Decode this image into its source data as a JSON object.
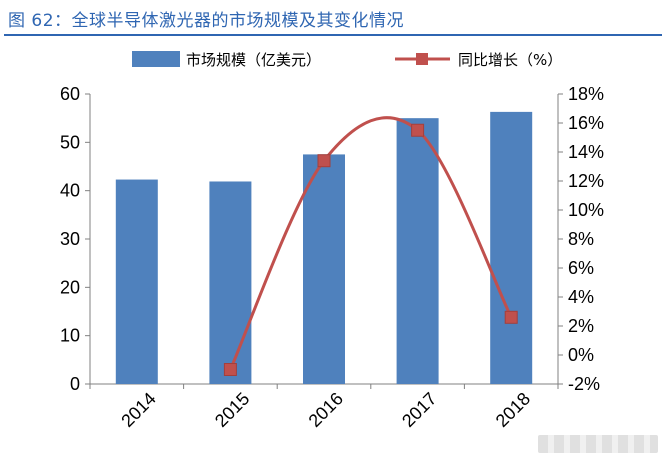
{
  "header": {
    "title": "图 62：全球半导体激光器的市场规模及其变化情况"
  },
  "chart_data": {
    "type": "bar",
    "categories": [
      "2014",
      "2015",
      "2016",
      "2017",
      "2018"
    ],
    "series": [
      {
        "name": "市场规模（亿美元）",
        "type": "bar",
        "axis": "left",
        "values": [
          42.3,
          41.9,
          47.5,
          55.0,
          56.3
        ],
        "color": "#4f81bd"
      },
      {
        "name": "同比增长（%）",
        "type": "line",
        "axis": "right",
        "values": [
          null,
          -1.0,
          13.4,
          15.5,
          2.6
        ],
        "color": "#c0504d",
        "smooth": true
      }
    ],
    "y_left": {
      "min": 0,
      "max": 60,
      "step": 10,
      "ticks": [
        "0",
        "10",
        "20",
        "30",
        "40",
        "50",
        "60"
      ]
    },
    "y_right": {
      "min": -2,
      "max": 18,
      "step": 2,
      "ticks": [
        "-2%",
        "0%",
        "2%",
        "4%",
        "6%",
        "8%",
        "10%",
        "12%",
        "14%",
        "16%",
        "18%"
      ]
    },
    "legend_position": "top",
    "grid": false
  }
}
